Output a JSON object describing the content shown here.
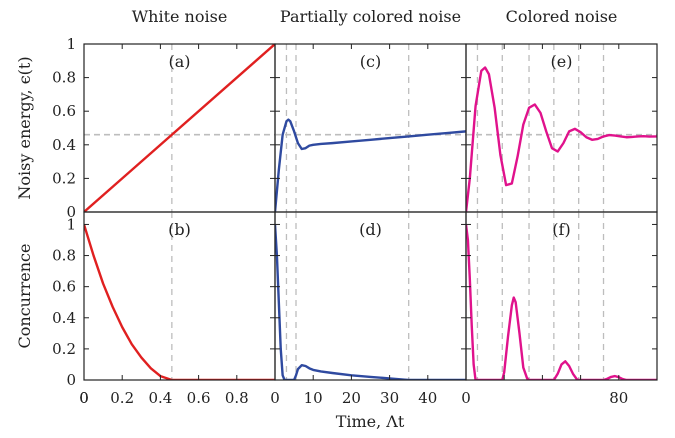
{
  "figure": {
    "column_titles": [
      "White noise",
      "Partially colored noise",
      "Colored noise"
    ],
    "ylabel_top": "Noisy energy, ϵ(t)",
    "ylabel_bottom": "Concurrence",
    "xlabel": "Time, Λt"
  },
  "colors": {
    "white": "#e02020",
    "partial": "#2f4aa0",
    "colored": "#e0128c",
    "guide": "#bdbdbd",
    "axis": "#222222"
  },
  "chart_data": [
    {
      "type": "line",
      "panel_label": "(a)",
      "column": 0,
      "row": 0,
      "xlim": [
        0,
        1
      ],
      "ylim": [
        0,
        1
      ],
      "x": [
        0,
        1
      ],
      "y": [
        0,
        1
      ],
      "series_color": "white",
      "vlines": [
        0.46
      ],
      "hline": 0.46,
      "xticks": [],
      "yticks": [
        "0",
        "0.2",
        "0.4",
        "0.6",
        "0.8",
        "1"
      ]
    },
    {
      "type": "line",
      "panel_label": "(b)",
      "column": 0,
      "row": 1,
      "xlim": [
        0,
        1
      ],
      "ylim": [
        0,
        1.08
      ],
      "x": [
        0,
        0.05,
        0.1,
        0.15,
        0.2,
        0.25,
        0.3,
        0.35,
        0.4,
        0.46,
        0.5,
        0.6,
        0.7,
        0.8,
        0.9,
        1.0
      ],
      "y": [
        1.0,
        0.8,
        0.62,
        0.47,
        0.34,
        0.23,
        0.145,
        0.075,
        0.025,
        0.0,
        0.0,
        0.0,
        0.0,
        0.0,
        0.0,
        0.0
      ],
      "series_color": "white",
      "vlines": [
        0.46
      ],
      "xticks": [
        "0",
        "0.2",
        "0.4",
        "0.6",
        "0.8"
      ],
      "yticks": [
        "0",
        "0.2",
        "0.4",
        "0.6",
        "0.8",
        "1"
      ]
    },
    {
      "type": "line",
      "panel_label": "(c)",
      "column": 1,
      "row": 0,
      "xlim": [
        0,
        50
      ],
      "ylim": [
        0,
        1
      ],
      "x": [
        0,
        1,
        2,
        3,
        3.5,
        4,
        5,
        6,
        7,
        8,
        9,
        10,
        12,
        15,
        20,
        25,
        30,
        35,
        40,
        45,
        50
      ],
      "y": [
        0,
        0.25,
        0.46,
        0.54,
        0.55,
        0.54,
        0.48,
        0.41,
        0.375,
        0.38,
        0.395,
        0.4,
        0.405,
        0.41,
        0.42,
        0.43,
        0.44,
        0.45,
        0.46,
        0.47,
        0.48
      ],
      "series_color": "partial",
      "vlines": [
        3,
        5.5,
        35
      ],
      "hline": 0.46,
      "xticks": [],
      "yticks": []
    },
    {
      "type": "line",
      "panel_label": "(d)",
      "column": 1,
      "row": 1,
      "xlim": [
        0,
        50
      ],
      "ylim": [
        0,
        1.08
      ],
      "x": [
        0,
        0.5,
        1,
        1.5,
        2,
        2.5,
        3,
        4,
        5,
        5.5,
        6,
        7,
        8,
        9,
        10,
        12,
        15,
        20,
        25,
        30,
        34,
        35,
        50
      ],
      "y": [
        1.0,
        0.8,
        0.5,
        0.2,
        0.03,
        0.0,
        0.0,
        0.0,
        0.0,
        0.03,
        0.07,
        0.095,
        0.09,
        0.075,
        0.065,
        0.055,
        0.045,
        0.03,
        0.02,
        0.01,
        0.002,
        0.0,
        0.0
      ],
      "series_color": "partial",
      "vlines": [
        3,
        5.5,
        35
      ],
      "xticks": [
        "10",
        "20",
        "30",
        "40"
      ],
      "yticks": []
    },
    {
      "type": "line",
      "panel_label": "(e)",
      "column": 2,
      "row": 0,
      "xlim": [
        0,
        100
      ],
      "ylim": [
        0,
        1
      ],
      "x": [
        0,
        2,
        5,
        8,
        10,
        12,
        15,
        18,
        21,
        24,
        27,
        30,
        33,
        36,
        39,
        42,
        45,
        48,
        51,
        54,
        57,
        60,
        63,
        66,
        69,
        72,
        75,
        78,
        81,
        84,
        87,
        90,
        93,
        96,
        100
      ],
      "y": [
        0,
        0.2,
        0.63,
        0.84,
        0.86,
        0.82,
        0.62,
        0.34,
        0.16,
        0.17,
        0.33,
        0.52,
        0.62,
        0.64,
        0.59,
        0.48,
        0.38,
        0.36,
        0.41,
        0.48,
        0.495,
        0.475,
        0.445,
        0.43,
        0.435,
        0.45,
        0.458,
        0.455,
        0.45,
        0.445,
        0.447,
        0.45,
        0.451,
        0.449,
        0.45
      ],
      "series_color": "colored",
      "vlines": [
        6,
        19,
        33,
        46,
        59,
        72
      ],
      "hline": 0.46,
      "xticks": [],
      "yticks": []
    },
    {
      "type": "line",
      "panel_label": "(f)",
      "column": 2,
      "row": 1,
      "xlim": [
        0,
        100
      ],
      "ylim": [
        0,
        1.08
      ],
      "x": [
        0,
        1,
        2,
        3,
        4,
        5,
        6,
        8,
        10,
        12,
        15,
        18,
        19,
        20,
        22,
        24,
        25,
        26,
        28,
        30,
        32,
        33,
        35,
        40,
        45,
        46,
        48,
        50,
        52,
        54,
        56,
        58,
        59,
        62,
        66,
        70,
        72,
        74,
        76,
        78,
        80,
        82,
        84,
        90,
        100
      ],
      "y": [
        1.0,
        0.9,
        0.65,
        0.35,
        0.1,
        0.0,
        0.0,
        0.0,
        0.0,
        0.0,
        0.0,
        0.0,
        0.0,
        0.05,
        0.28,
        0.48,
        0.53,
        0.5,
        0.3,
        0.08,
        0.01,
        0.0,
        0.0,
        0.0,
        0.0,
        0.0,
        0.04,
        0.1,
        0.12,
        0.09,
        0.04,
        0.005,
        0.0,
        0.0,
        0.0,
        0.0,
        0.0,
        0.008,
        0.02,
        0.025,
        0.018,
        0.006,
        0.0,
        0.0,
        0.0
      ],
      "series_color": "colored",
      "vlines": [
        6,
        19,
        33,
        46,
        59,
        72
      ],
      "xticks": [
        "80"
      ],
      "yticks": []
    }
  ],
  "shared_xticks": [
    "0",
    "0",
    "0"
  ]
}
